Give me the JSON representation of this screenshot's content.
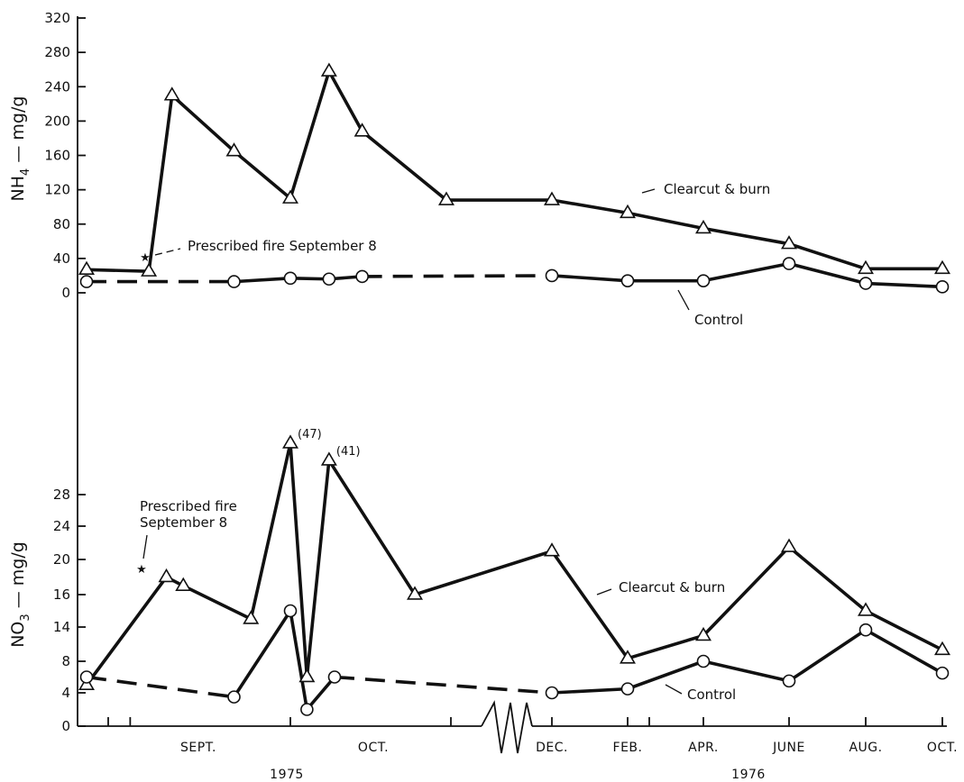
{
  "chart_data": [
    {
      "type": "line",
      "ylabel_main": "NH",
      "ylabel_sub": "4",
      "ylabel_rest": " — mg/g",
      "ylim": [
        0,
        320
      ],
      "yticks": [
        0,
        40,
        80,
        120,
        160,
        200,
        240,
        280,
        320
      ],
      "grid": false,
      "series": [
        {
          "name": "Clearcut & burn",
          "marker": "triangle",
          "style": "solid",
          "points": [
            {
              "x": "1975-08-25",
              "y": 27
            },
            {
              "x": "1975-09-04",
              "y": 25
            },
            {
              "x": "1975-09-08",
              "y": 230
            },
            {
              "x": "1975-09-19",
              "y": 165
            },
            {
              "x": "1975-09-29",
              "y": 110
            },
            {
              "x": "1975-10-06",
              "y": 258
            },
            {
              "x": "1975-10-12",
              "y": 188
            },
            {
              "x": "1975-10-30",
              "y": 108
            },
            {
              "x": "1975-12-11",
              "y": 108
            },
            {
              "x": "1976-02-01",
              "y": 93
            },
            {
              "x": "1976-04-01",
              "y": 75
            },
            {
              "x": "1976-06-01",
              "y": 57
            },
            {
              "x": "1976-08-01",
              "y": 28
            },
            {
              "x": "1976-10-01",
              "y": 28
            }
          ]
        },
        {
          "name": "Control",
          "marker": "circle",
          "points": [
            {
              "x": "1975-08-25",
              "y": 13
            },
            {
              "x": "1975-09-19",
              "y": 13
            },
            {
              "x": "1975-09-29",
              "y": 17
            },
            {
              "x": "1975-10-06",
              "y": 16
            },
            {
              "x": "1975-10-12",
              "y": 19
            },
            {
              "x": "1975-12-11",
              "y": 20
            },
            {
              "x": "1976-02-01",
              "y": 14
            },
            {
              "x": "1976-04-01",
              "y": 14
            },
            {
              "x": "1976-06-01",
              "y": 34
            },
            {
              "x": "1976-08-01",
              "y": 11
            },
            {
              "x": "1976-10-01",
              "y": 7
            }
          ],
          "dashed_segments": [
            0,
            4
          ],
          "solid_segments": [
            1,
            2,
            3,
            5,
            6,
            7,
            8,
            9
          ]
        }
      ],
      "annotations": [
        {
          "text": "Prescribed fire September 8"
        }
      ],
      "series_labels": [
        "Clearcut & burn",
        "Control"
      ]
    },
    {
      "type": "line",
      "ylabel_main": "NO",
      "ylabel_sub": "3",
      "ylabel_rest": " — mg/g",
      "yticks": [
        0,
        4,
        8,
        14,
        16,
        20,
        24,
        28
      ],
      "grid": false,
      "series": [
        {
          "name": "Clearcut & burn",
          "marker": "triangle",
          "style": "solid",
          "points": [
            {
              "x": "1975-08-25",
              "y": 5
            },
            {
              "x": "1975-09-07",
              "y": 18
            },
            {
              "x": "1975-09-10",
              "y": 17
            },
            {
              "x": "1975-09-22",
              "y": 14.5
            },
            {
              "x": "1975-09-29",
              "y": 47,
              "label": "(47)"
            },
            {
              "x": "1975-10-02",
              "y": 6
            },
            {
              "x": "1975-10-06",
              "y": 41,
              "label": "(41)"
            },
            {
              "x": "1975-10-23",
              "y": 16
            },
            {
              "x": "1975-12-11",
              "y": 21
            },
            {
              "x": "1976-02-01",
              "y": 8.5
            },
            {
              "x": "1976-04-01",
              "y": 12.5
            },
            {
              "x": "1976-06-01",
              "y": 21.5
            },
            {
              "x": "1976-08-01",
              "y": 15
            },
            {
              "x": "1976-10-01",
              "y": 10
            }
          ]
        },
        {
          "name": "Control",
          "marker": "circle",
          "points": [
            {
              "x": "1975-08-25",
              "y": 6
            },
            {
              "x": "1975-09-19",
              "y": 3.5
            },
            {
              "x": "1975-09-29",
              "y": 15
            },
            {
              "x": "1975-10-02",
              "y": 2
            },
            {
              "x": "1975-10-07",
              "y": 6
            },
            {
              "x": "1975-12-11",
              "y": 4
            },
            {
              "x": "1976-02-01",
              "y": 4.5
            },
            {
              "x": "1976-04-01",
              "y": 8
            },
            {
              "x": "1976-06-01",
              "y": 5.5
            },
            {
              "x": "1976-08-01",
              "y": 13.5
            },
            {
              "x": "1976-10-01",
              "y": 6.5
            }
          ],
          "dashed_segments": [
            0,
            4
          ],
          "solid_segments": [
            1,
            2,
            3,
            5,
            6,
            7,
            8,
            9
          ]
        }
      ],
      "annotations": [
        {
          "text_line1": "Prescribed fire",
          "text_line2": "September 8"
        }
      ],
      "series_labels": [
        "Clearcut & burn",
        "Control"
      ]
    }
  ],
  "x_axis": {
    "type": "date",
    "broken": true,
    "ticks": [
      {
        "label": "SEPT.",
        "x": "1975-09-15"
      },
      {
        "label": "OCT.",
        "x": "1975-10-15"
      },
      {
        "label": "DEC.",
        "x": "1975-12-11"
      },
      {
        "label": "FEB.",
        "x": "1976-02-01"
      },
      {
        "label": "APR.",
        "x": "1976-04-01"
      },
      {
        "label": "JUNE",
        "x": "1976-06-01"
      },
      {
        "label": "AUG.",
        "x": "1976-08-01"
      },
      {
        "label": "OCT.",
        "x": "1976-10-01"
      }
    ],
    "years": [
      {
        "label": "1975"
      },
      {
        "label": "1976"
      }
    ]
  }
}
